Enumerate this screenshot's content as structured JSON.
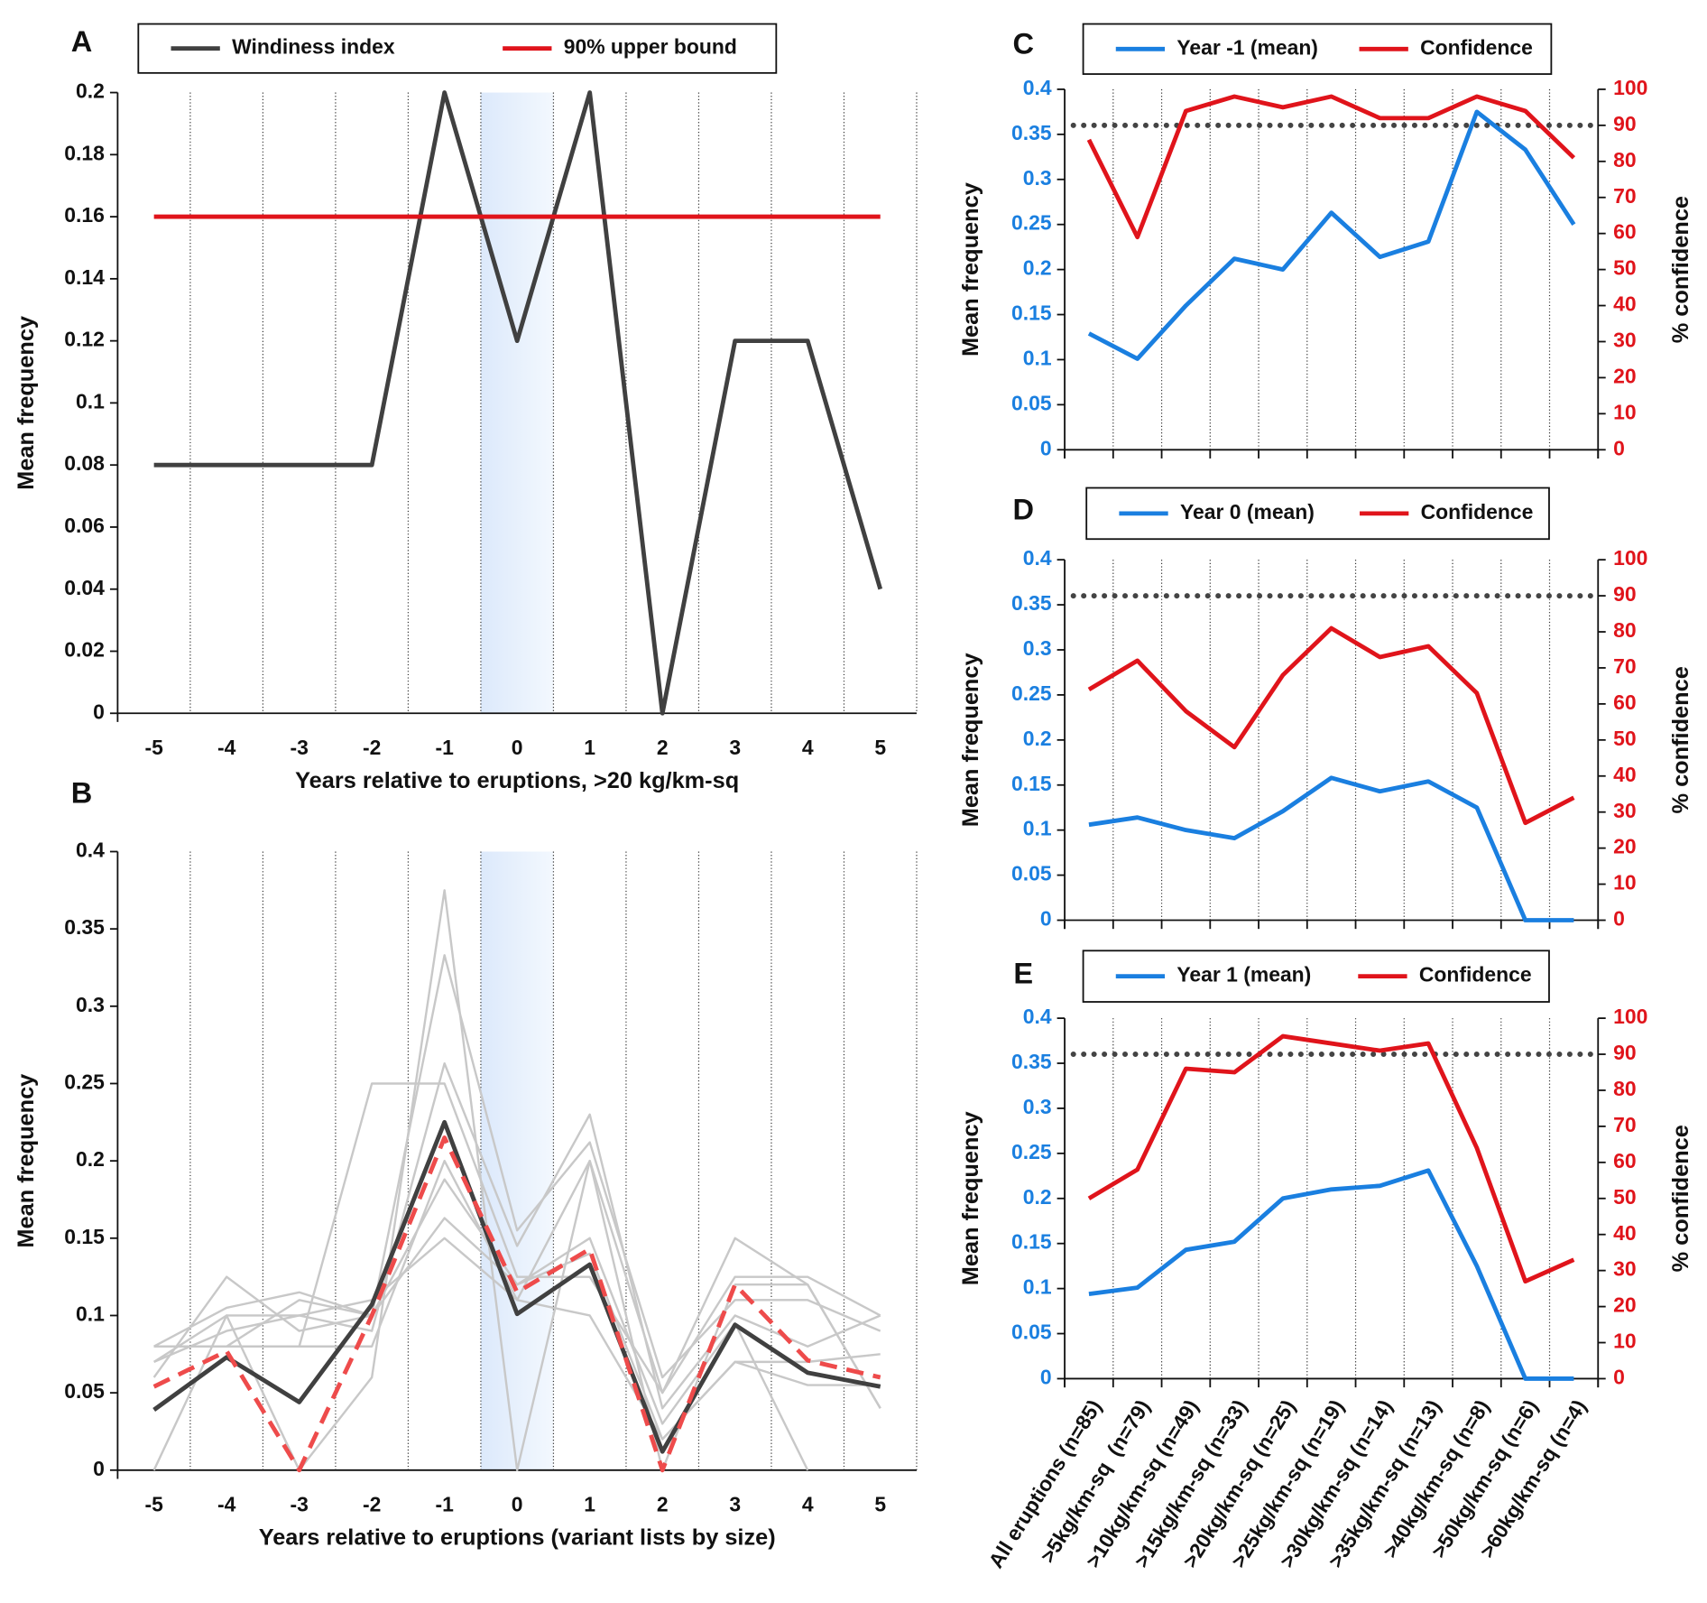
{
  "chart_data": [
    {
      "type": "line",
      "panel": "A",
      "xlabel": "Years relative to eruptions, >20 kg/km-sq",
      "ylabel": "Mean frequency",
      "x": [
        -5,
        -4,
        -3,
        -2,
        -1,
        0,
        1,
        2,
        3,
        4,
        5
      ],
      "xlim": [
        -5.5,
        5.5
      ],
      "xticks": [
        -5,
        -4,
        -3,
        -2,
        -1,
        0,
        1,
        2,
        3,
        4,
        5
      ],
      "ylim": [
        0,
        0.2
      ],
      "yticks": [
        0,
        0.02,
        0.04,
        0.06,
        0.08,
        0.1,
        0.12,
        0.14,
        0.16,
        0.18,
        0.2
      ],
      "grid": true,
      "shade_x": [
        -0.5,
        0.5
      ],
      "series": [
        {
          "name": "Windiness index",
          "color": "#404040",
          "values": [
            0.08,
            0.08,
            0.08,
            0.08,
            0.2,
            0.12,
            0.2,
            0,
            0.12,
            0.12,
            0.04
          ]
        },
        {
          "name": "90% upper bound",
          "color": "#e0141b",
          "values": [
            0.16,
            0.16,
            0.16,
            0.16,
            0.16,
            0.16,
            0.16,
            0.16,
            0.16,
            0.16,
            0.16
          ]
        }
      ]
    },
    {
      "type": "line",
      "panel": "B",
      "xlabel": "Years relative to eruptions (variant lists by size)",
      "ylabel": "Mean frequency",
      "x": [
        -5,
        -4,
        -3,
        -2,
        -1,
        0,
        1,
        2,
        3,
        4,
        5
      ],
      "xlim": [
        -5.5,
        5.5
      ],
      "xticks": [
        -5,
        -4,
        -3,
        -2,
        -1,
        0,
        1,
        2,
        3,
        4,
        5
      ],
      "ylim": [
        0,
        0.4
      ],
      "yticks": [
        0,
        0.05,
        0.1,
        0.15,
        0.2,
        0.25,
        0.3,
        0.35,
        0.4
      ],
      "grid": true,
      "shade_x": [
        -0.5,
        0.5
      ],
      "series": [
        {
          "color": "#c8c8c8",
          "values": [
            0.08,
            0.08,
            0.08,
            0.25,
            0.25,
            0.125,
            0.125,
            0.05,
            0.125,
            0.125,
            0.1
          ]
        },
        {
          "color": "#c8c8c8",
          "values": [
            0,
            0.1,
            0,
            0.06,
            0.375,
            0,
            0.2,
            0.05,
            0.15,
            0.12,
            0.04
          ]
        },
        {
          "color": "#c8c8c8",
          "values": [
            0.08,
            0.105,
            0.115,
            0.1,
            0.333,
            0.155,
            0.212,
            0.06,
            0.11,
            0.11,
            0.09
          ]
        },
        {
          "color": "#c8c8c8",
          "values": [
            0.07,
            0.09,
            0.1,
            0.09,
            0.263,
            0.145,
            0.23,
            0.04,
            0.1,
            0.08,
            0.1
          ]
        },
        {
          "color": "#c8c8c8",
          "values": [
            0.06,
            0.125,
            0.09,
            0.1,
            0.188,
            0.12,
            0.15,
            0.03,
            0.095,
            0,
            null
          ]
        },
        {
          "color": "#c8c8c8",
          "values": [
            0.08,
            0.08,
            0.11,
            0.1,
            0.163,
            0.12,
            0.14,
            0.02,
            0.07,
            0.07,
            0.075
          ]
        },
        {
          "color": "#c8c8c8",
          "values": [
            0.08,
            0.08,
            0.08,
            0.08,
            0.2,
            0.11,
            0.2,
            0,
            0.12,
            0.12,
            0.04
          ]
        },
        {
          "color": "#c8c8c8",
          "values": [
            0.07,
            0.1,
            0.1,
            0.11,
            0.15,
            0.11,
            0.1,
            0.02,
            0.07,
            0.055,
            0.055
          ]
        },
        {
          "color": "#404040",
          "values": [
            0.039,
            0.073,
            0.044,
            0.107,
            0.225,
            0.101,
            0.133,
            0.012,
            0.094,
            0.063,
            0.054
          ]
        },
        {
          "color": "#ee4b4b",
          "dashed": true,
          "values": [
            0.054,
            0.077,
            0,
            0.1,
            0.215,
            0.115,
            0.143,
            0,
            0.12,
            0.071,
            0.06
          ]
        }
      ]
    },
    {
      "type": "line",
      "panel": "C",
      "ylabel": "Mean frequency",
      "y2label": "% confidence",
      "ylim": [
        0,
        0.4
      ],
      "yticks": [
        0,
        0.05,
        0.1,
        0.15,
        0.2,
        0.25,
        0.3,
        0.35,
        0.4
      ],
      "y2lim": [
        0,
        100
      ],
      "y2ticks": [
        0,
        10,
        20,
        30,
        40,
        50,
        60,
        70,
        80,
        90,
        100
      ],
      "hline_y2": 90,
      "grid": true,
      "series": [
        {
          "name": "Year -1 (mean)",
          "color": "#1a7fe0",
          "values": [
            0.129,
            0.101,
            0.16,
            0.212,
            0.2,
            0.263,
            0.214,
            0.231,
            0.375,
            0.333,
            0.25
          ]
        },
        {
          "name": "Confidence",
          "color": "#e0141b",
          "axis": "y2",
          "values": [
            86,
            59,
            94,
            98,
            95,
            98,
            92,
            92,
            98,
            94,
            81
          ]
        }
      ]
    },
    {
      "type": "line",
      "panel": "D",
      "ylabel": "Mean frequency",
      "y2label": "% confidence",
      "ylim": [
        0,
        0.4
      ],
      "yticks": [
        0,
        0.05,
        0.1,
        0.15,
        0.2,
        0.25,
        0.3,
        0.35,
        0.4
      ],
      "y2lim": [
        0,
        100
      ],
      "y2ticks": [
        0,
        10,
        20,
        30,
        40,
        50,
        60,
        70,
        80,
        90,
        100
      ],
      "hline_y2": 90,
      "grid": true,
      "series": [
        {
          "name": "Year 0 (mean)",
          "color": "#1a7fe0",
          "values": [
            0.106,
            0.114,
            0.1,
            0.091,
            0.121,
            0.158,
            0.143,
            0.154,
            0.125,
            0,
            0
          ]
        },
        {
          "name": "Confidence",
          "color": "#e0141b",
          "axis": "y2",
          "values": [
            64,
            72,
            58,
            48,
            68,
            81,
            73,
            76,
            63,
            27,
            34
          ]
        }
      ]
    },
    {
      "type": "line",
      "panel": "E",
      "ylabel": "Mean frequency",
      "y2label": "% confidence",
      "categories": [
        "All eruptions (n=85)",
        ">5kg/km-sq  (n=79)",
        ">10kg/km-sq (n=49)",
        ">15kg/km-sq (n=33)",
        ">20kg/km-sq (n=25)",
        ">25kg/km-sq (n=19)",
        ">30kg/km-sq (n=14)",
        ">35kg/km-sq (n=13)",
        ">40kg/km-sq (n=8)",
        ">50kg/km-sq (n=6)",
        ">60kg/km-sq (n=4)"
      ],
      "ylim": [
        0,
        0.4
      ],
      "yticks": [
        0,
        0.05,
        0.1,
        0.15,
        0.2,
        0.25,
        0.3,
        0.35,
        0.4
      ],
      "y2lim": [
        0,
        100
      ],
      "y2ticks": [
        0,
        10,
        20,
        30,
        40,
        50,
        60,
        70,
        80,
        90,
        100
      ],
      "hline_y2": 90,
      "grid": true,
      "series": [
        {
          "name": "Year 1 (mean)",
          "color": "#1a7fe0",
          "values": [
            0.094,
            0.101,
            0.143,
            0.152,
            0.2,
            0.21,
            0.214,
            0.231,
            0.125,
            0,
            0
          ]
        },
        {
          "name": "Confidence",
          "color": "#e0141b",
          "axis": "y2",
          "values": [
            50,
            58,
            86,
            85,
            95,
            93,
            91,
            93,
            64,
            27,
            33
          ]
        }
      ]
    }
  ]
}
